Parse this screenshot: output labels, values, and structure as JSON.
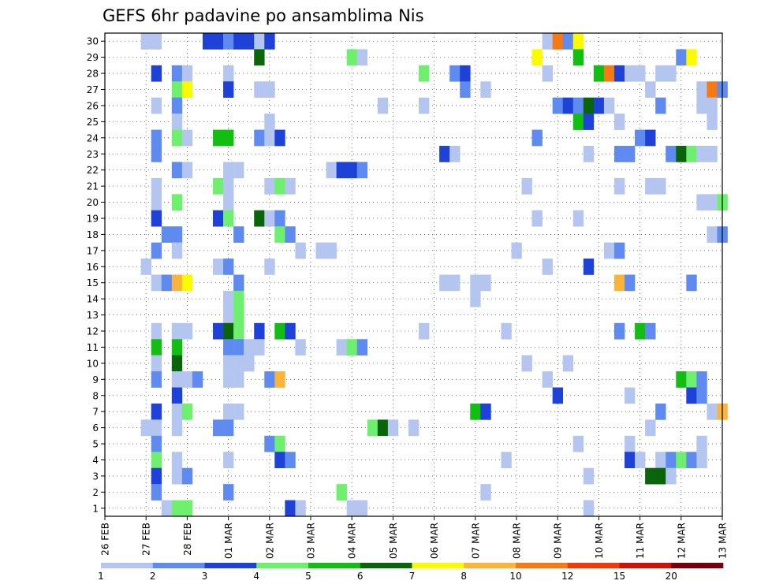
{
  "chart_data": {
    "type": "heatmap",
    "title": "GEFS 6hr padavine po ansamblima Nis",
    "xlabel": "",
    "ylabel": "",
    "y_categories": [
      1,
      2,
      3,
      4,
      5,
      6,
      7,
      8,
      9,
      10,
      11,
      12,
      13,
      14,
      15,
      16,
      17,
      18,
      19,
      20,
      21,
      22,
      23,
      24,
      25,
      26,
      27,
      28,
      29,
      30
    ],
    "x_tick_labels": [
      "26 FEB",
      "27 FEB",
      "28 FEB",
      "01 MAR",
      "02 MAR",
      "03 MAR",
      "04 MAR",
      "05 MAR",
      "06 MAR",
      "07 MAR",
      "08 MAR",
      "09 MAR",
      "10 MAR",
      "11 MAR",
      "12 MAR",
      "13 MAR"
    ],
    "x_units": "6-hour steps from 26 FEB 00Z",
    "x_range": [
      0,
      60
    ],
    "grid": true,
    "color_levels": [
      1,
      2,
      3,
      4,
      5,
      6,
      7,
      8,
      10,
      12,
      15,
      20
    ],
    "colorbar_labels": [
      "1",
      "2",
      "3",
      "4",
      "5",
      "6",
      "7",
      "8",
      "10",
      "12",
      "15",
      "20"
    ],
    "colors": [
      "#b4c5f0",
      "#5f8af0",
      "#1e41d8",
      "#6ef06e",
      "#12be12",
      "#0a640a",
      "#fafa00",
      "#fab43c",
      "#f57a14",
      "#eb3c0a",
      "#c8140a",
      "#78000a"
    ],
    "cells": [
      [
        4,
        30,
        1
      ],
      [
        5,
        30,
        1
      ],
      [
        10,
        30,
        3
      ],
      [
        11,
        30,
        3
      ],
      [
        12,
        30,
        2
      ],
      [
        13,
        30,
        3
      ],
      [
        14,
        30,
        3
      ],
      [
        15,
        30,
        1
      ],
      [
        16,
        30,
        3
      ],
      [
        43,
        30,
        1
      ],
      [
        44,
        30,
        9
      ],
      [
        45,
        30,
        2
      ],
      [
        46,
        30,
        7
      ],
      [
        15,
        29,
        6
      ],
      [
        24,
        29,
        4
      ],
      [
        25,
        29,
        1
      ],
      [
        42,
        29,
        7
      ],
      [
        46,
        29,
        5
      ],
      [
        56,
        29,
        2
      ],
      [
        57,
        29,
        7
      ],
      [
        5,
        28,
        3
      ],
      [
        7,
        28,
        2
      ],
      [
        8,
        28,
        1
      ],
      [
        12,
        28,
        1
      ],
      [
        31,
        28,
        4
      ],
      [
        34,
        28,
        2
      ],
      [
        35,
        28,
        3
      ],
      [
        43,
        28,
        1
      ],
      [
        48,
        28,
        5
      ],
      [
        49,
        28,
        9
      ],
      [
        50,
        28,
        3
      ],
      [
        51,
        28,
        1
      ],
      [
        52,
        28,
        1
      ],
      [
        54,
        28,
        1
      ],
      [
        55,
        28,
        1
      ],
      [
        7,
        27,
        4
      ],
      [
        8,
        27,
        7
      ],
      [
        12,
        27,
        3
      ],
      [
        15,
        27,
        1
      ],
      [
        16,
        27,
        1
      ],
      [
        35,
        27,
        2
      ],
      [
        37,
        27,
        1
      ],
      [
        53,
        27,
        1
      ],
      [
        58,
        27,
        1
      ],
      [
        59,
        27,
        9
      ],
      [
        60,
        27,
        2
      ],
      [
        5,
        26,
        1
      ],
      [
        7,
        26,
        2
      ],
      [
        27,
        26,
        1
      ],
      [
        31,
        26,
        1
      ],
      [
        44,
        26,
        2
      ],
      [
        45,
        26,
        3
      ],
      [
        46,
        26,
        2
      ],
      [
        47,
        26,
        6
      ],
      [
        48,
        26,
        3
      ],
      [
        49,
        26,
        1
      ],
      [
        54,
        26,
        2
      ],
      [
        58,
        26,
        1
      ],
      [
        59,
        26,
        1
      ],
      [
        7,
        25,
        1
      ],
      [
        16,
        25,
        1
      ],
      [
        46,
        25,
        5
      ],
      [
        47,
        25,
        3
      ],
      [
        50,
        25,
        1
      ],
      [
        59,
        25,
        1
      ],
      [
        5,
        24,
        2
      ],
      [
        7,
        24,
        4
      ],
      [
        8,
        24,
        1
      ],
      [
        11,
        24,
        5
      ],
      [
        12,
        24,
        5
      ],
      [
        15,
        24,
        2
      ],
      [
        16,
        24,
        1
      ],
      [
        17,
        24,
        3
      ],
      [
        42,
        24,
        2
      ],
      [
        52,
        24,
        2
      ],
      [
        53,
        24,
        3
      ],
      [
        5,
        23,
        2
      ],
      [
        33,
        23,
        3
      ],
      [
        34,
        23,
        1
      ],
      [
        47,
        23,
        1
      ],
      [
        50,
        23,
        2
      ],
      [
        51,
        23,
        2
      ],
      [
        55,
        23,
        2
      ],
      [
        56,
        23,
        6
      ],
      [
        57,
        23,
        4
      ],
      [
        58,
        23,
        1
      ],
      [
        59,
        23,
        1
      ],
      [
        7,
        22,
        2
      ],
      [
        8,
        22,
        1
      ],
      [
        12,
        22,
        1
      ],
      [
        13,
        22,
        1
      ],
      [
        22,
        22,
        1
      ],
      [
        23,
        22,
        3
      ],
      [
        24,
        22,
        3
      ],
      [
        25,
        22,
        2
      ],
      [
        5,
        21,
        1
      ],
      [
        11,
        21,
        4
      ],
      [
        12,
        21,
        1
      ],
      [
        16,
        21,
        1
      ],
      [
        17,
        21,
        4
      ],
      [
        18,
        21,
        1
      ],
      [
        41,
        21,
        1
      ],
      [
        50,
        21,
        1
      ],
      [
        53,
        21,
        1
      ],
      [
        54,
        21,
        1
      ],
      [
        5,
        20,
        1
      ],
      [
        7,
        20,
        4
      ],
      [
        12,
        20,
        1
      ],
      [
        58,
        20,
        1
      ],
      [
        59,
        20,
        1
      ],
      [
        60,
        20,
        4
      ],
      [
        5,
        19,
        3
      ],
      [
        11,
        19,
        3
      ],
      [
        12,
        19,
        4
      ],
      [
        15,
        19,
        6
      ],
      [
        16,
        19,
        1
      ],
      [
        17,
        19,
        2
      ],
      [
        42,
        19,
        1
      ],
      [
        46,
        19,
        1
      ],
      [
        6,
        18,
        2
      ],
      [
        7,
        18,
        2
      ],
      [
        13,
        18,
        2
      ],
      [
        17,
        18,
        4
      ],
      [
        18,
        18,
        2
      ],
      [
        59,
        18,
        1
      ],
      [
        60,
        18,
        2
      ],
      [
        5,
        17,
        2
      ],
      [
        7,
        17,
        1
      ],
      [
        19,
        17,
        1
      ],
      [
        21,
        17,
        1
      ],
      [
        22,
        17,
        1
      ],
      [
        40,
        17,
        1
      ],
      [
        49,
        17,
        1
      ],
      [
        50,
        17,
        2
      ],
      [
        4,
        16,
        1
      ],
      [
        11,
        16,
        1
      ],
      [
        12,
        16,
        2
      ],
      [
        16,
        16,
        1
      ],
      [
        43,
        16,
        1
      ],
      [
        47,
        16,
        3
      ],
      [
        5,
        15,
        1
      ],
      [
        6,
        15,
        2
      ],
      [
        7,
        15,
        8
      ],
      [
        8,
        15,
        7
      ],
      [
        13,
        15,
        2
      ],
      [
        33,
        15,
        1
      ],
      [
        34,
        15,
        1
      ],
      [
        36,
        15,
        1
      ],
      [
        37,
        15,
        1
      ],
      [
        50,
        15,
        8
      ],
      [
        51,
        15,
        2
      ],
      [
        57,
        15,
        2
      ],
      [
        12,
        14,
        1
      ],
      [
        13,
        14,
        4
      ],
      [
        36,
        14,
        1
      ],
      [
        12,
        13,
        1
      ],
      [
        13,
        13,
        4
      ],
      [
        5,
        12,
        1
      ],
      [
        7,
        12,
        1
      ],
      [
        8,
        12,
        1
      ],
      [
        11,
        12,
        3
      ],
      [
        12,
        12,
        6
      ],
      [
        13,
        12,
        4
      ],
      [
        15,
        12,
        3
      ],
      [
        17,
        12,
        5
      ],
      [
        18,
        12,
        3
      ],
      [
        31,
        12,
        1
      ],
      [
        39,
        12,
        1
      ],
      [
        50,
        12,
        2
      ],
      [
        52,
        12,
        5
      ],
      [
        53,
        12,
        2
      ],
      [
        5,
        11,
        5
      ],
      [
        7,
        11,
        5
      ],
      [
        12,
        11,
        2
      ],
      [
        13,
        11,
        2
      ],
      [
        14,
        11,
        1
      ],
      [
        15,
        11,
        1
      ],
      [
        19,
        11,
        1
      ],
      [
        23,
        11,
        1
      ],
      [
        24,
        11,
        4
      ],
      [
        25,
        11,
        2
      ],
      [
        5,
        10,
        1
      ],
      [
        7,
        10,
        6
      ],
      [
        12,
        10,
        1
      ],
      [
        13,
        10,
        1
      ],
      [
        14,
        10,
        1
      ],
      [
        41,
        10,
        1
      ],
      [
        45,
        10,
        1
      ],
      [
        5,
        9,
        2
      ],
      [
        7,
        9,
        1
      ],
      [
        8,
        9,
        1
      ],
      [
        9,
        9,
        2
      ],
      [
        12,
        9,
        1
      ],
      [
        13,
        9,
        1
      ],
      [
        16,
        9,
        2
      ],
      [
        17,
        9,
        8
      ],
      [
        43,
        9,
        1
      ],
      [
        56,
        9,
        5
      ],
      [
        57,
        9,
        4
      ],
      [
        58,
        9,
        2
      ],
      [
        7,
        8,
        3
      ],
      [
        44,
        8,
        3
      ],
      [
        51,
        8,
        1
      ],
      [
        57,
        8,
        3
      ],
      [
        58,
        8,
        2
      ],
      [
        5,
        7,
        3
      ],
      [
        7,
        7,
        1
      ],
      [
        8,
        7,
        4
      ],
      [
        12,
        7,
        1
      ],
      [
        13,
        7,
        1
      ],
      [
        36,
        7,
        5
      ],
      [
        37,
        7,
        3
      ],
      [
        54,
        7,
        2
      ],
      [
        59,
        7,
        1
      ],
      [
        60,
        7,
        8
      ],
      [
        4,
        6,
        1
      ],
      [
        5,
        6,
        1
      ],
      [
        7,
        6,
        1
      ],
      [
        11,
        6,
        2
      ],
      [
        12,
        6,
        2
      ],
      [
        26,
        6,
        4
      ],
      [
        27,
        6,
        6
      ],
      [
        28,
        6,
        1
      ],
      [
        30,
        6,
        1
      ],
      [
        53,
        6,
        1
      ],
      [
        5,
        5,
        2
      ],
      [
        16,
        5,
        2
      ],
      [
        17,
        5,
        4
      ],
      [
        46,
        5,
        1
      ],
      [
        51,
        5,
        1
      ],
      [
        58,
        5,
        1
      ],
      [
        5,
        4,
        4
      ],
      [
        7,
        4,
        1
      ],
      [
        12,
        4,
        1
      ],
      [
        17,
        4,
        3
      ],
      [
        18,
        4,
        2
      ],
      [
        39,
        4,
        1
      ],
      [
        51,
        4,
        3
      ],
      [
        52,
        4,
        1
      ],
      [
        54,
        4,
        1
      ],
      [
        55,
        4,
        2
      ],
      [
        56,
        4,
        4
      ],
      [
        57,
        4,
        2
      ],
      [
        58,
        4,
        1
      ],
      [
        5,
        3,
        3
      ],
      [
        7,
        3,
        1
      ],
      [
        8,
        3,
        2
      ],
      [
        47,
        3,
        1
      ],
      [
        53,
        3,
        6
      ],
      [
        54,
        3,
        6
      ],
      [
        55,
        3,
        1
      ],
      [
        5,
        2,
        2
      ],
      [
        12,
        2,
        2
      ],
      [
        23,
        2,
        4
      ],
      [
        37,
        2,
        1
      ],
      [
        6,
        1,
        1
      ],
      [
        7,
        1,
        4
      ],
      [
        8,
        1,
        4
      ],
      [
        18,
        1,
        3
      ],
      [
        19,
        1,
        1
      ],
      [
        24,
        1,
        1
      ],
      [
        25,
        1,
        1
      ],
      [
        47,
        1,
        1
      ]
    ]
  }
}
